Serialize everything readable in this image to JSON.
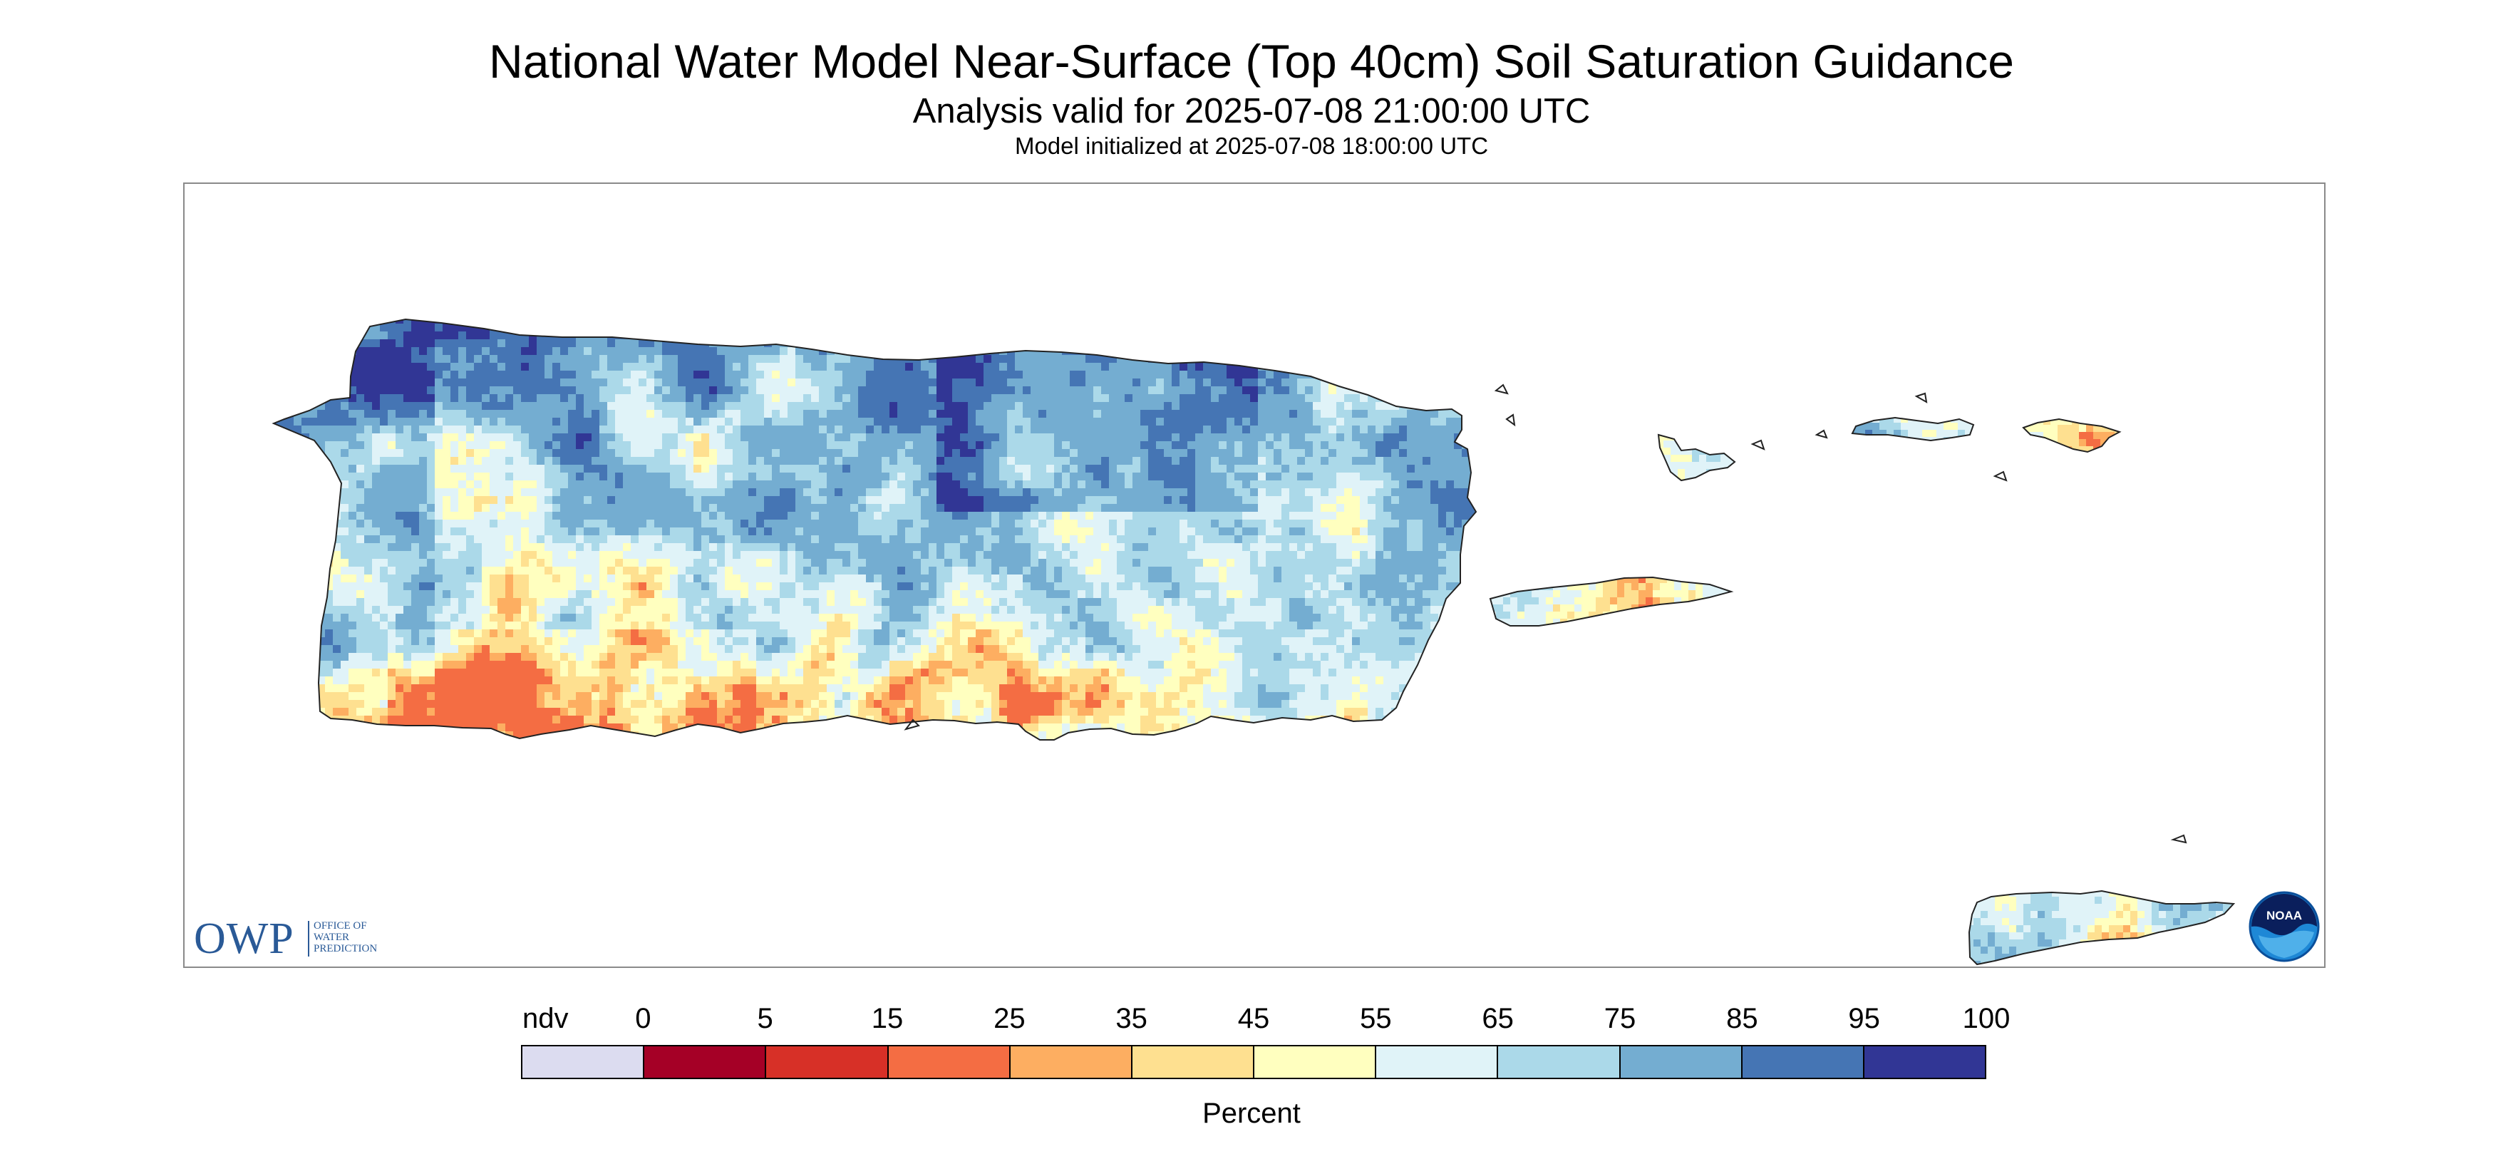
{
  "header": {
    "title": "National Water Model Near-Surface (Top 40cm) Soil Saturation Guidance",
    "subtitle": "Analysis valid for 2025-07-08 21:00:00 UTC",
    "init_line": "Model initialized at 2025-07-08 18:00:00 UTC"
  },
  "logos": {
    "owp_mark": "OWP",
    "owp_name": "OFFICE OF\nWATER\nPREDICTION",
    "noaa_text": "NOAA"
  },
  "legend": {
    "labels": [
      "ndv",
      "0",
      "5",
      "15",
      "25",
      "35",
      "45",
      "55",
      "65",
      "75",
      "85",
      "95",
      "100"
    ],
    "colors": [
      "#dcdcf0",
      "#a50026",
      "#d73027",
      "#f46d43",
      "#fdae61",
      "#fee090",
      "#ffffbf",
      "#e0f3f8",
      "#abd9e9",
      "#74add1",
      "#4575b4",
      "#313695"
    ],
    "units": "Percent"
  }
}
